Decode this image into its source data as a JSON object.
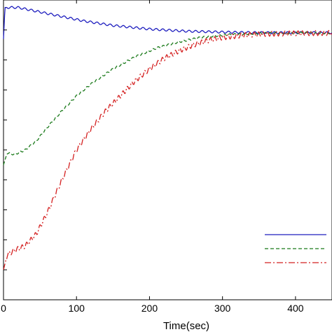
{
  "chart_data": {
    "type": "line",
    "title": "",
    "xlabel": "Time(sec)",
    "ylabel": "",
    "xlim": [
      0,
      450
    ],
    "ylim": [
      0,
      1
    ],
    "x_ticks": [
      0,
      100,
      200,
      300,
      400
    ],
    "x_tick_labels": [
      "0",
      "100",
      "200",
      "300",
      "400"
    ],
    "y_ticks": [
      0.1,
      0.2,
      0.3,
      0.4,
      0.5,
      0.6,
      0.7,
      0.8,
      0.9
    ],
    "grid": false,
    "legend_position": "bottom-right",
    "series": [
      {
        "color": "#1f1fbf",
        "dash": "solid",
        "oscillation": {
          "amplitude": 0.0035,
          "period": 9
        },
        "x": [
          0,
          2,
          20,
          50,
          80,
          110,
          150,
          200,
          250,
          300,
          350,
          400,
          450
        ],
        "y": [
          0.87,
          0.975,
          0.975,
          0.96,
          0.945,
          0.93,
          0.915,
          0.903,
          0.896,
          0.893,
          0.891,
          0.891,
          0.891
        ]
      },
      {
        "color": "#1a7a1a",
        "dash": "dashed",
        "oscillation": {
          "amplitude": 0.003,
          "period": 7
        },
        "x": [
          0,
          5,
          15,
          30,
          45,
          60,
          80,
          100,
          120,
          150,
          180,
          210,
          240,
          270,
          300,
          330,
          360,
          400,
          450
        ],
        "y": [
          0.45,
          0.49,
          0.485,
          0.5,
          0.53,
          0.575,
          0.63,
          0.68,
          0.72,
          0.77,
          0.81,
          0.84,
          0.86,
          0.875,
          0.883,
          0.887,
          0.889,
          0.89,
          0.89
        ]
      },
      {
        "color": "#d42020",
        "dash": "dashdot",
        "oscillation": {
          "amplitude": 0.008,
          "period": 6
        },
        "x": [
          0,
          5,
          15,
          30,
          45,
          60,
          80,
          100,
          120,
          140,
          160,
          180,
          200,
          220,
          240,
          260,
          280,
          300,
          330,
          360,
          400,
          450
        ],
        "y": [
          0.1,
          0.15,
          0.165,
          0.18,
          0.22,
          0.29,
          0.4,
          0.5,
          0.57,
          0.63,
          0.68,
          0.73,
          0.77,
          0.805,
          0.83,
          0.85,
          0.865,
          0.875,
          0.883,
          0.887,
          0.889,
          0.89
        ]
      }
    ]
  }
}
